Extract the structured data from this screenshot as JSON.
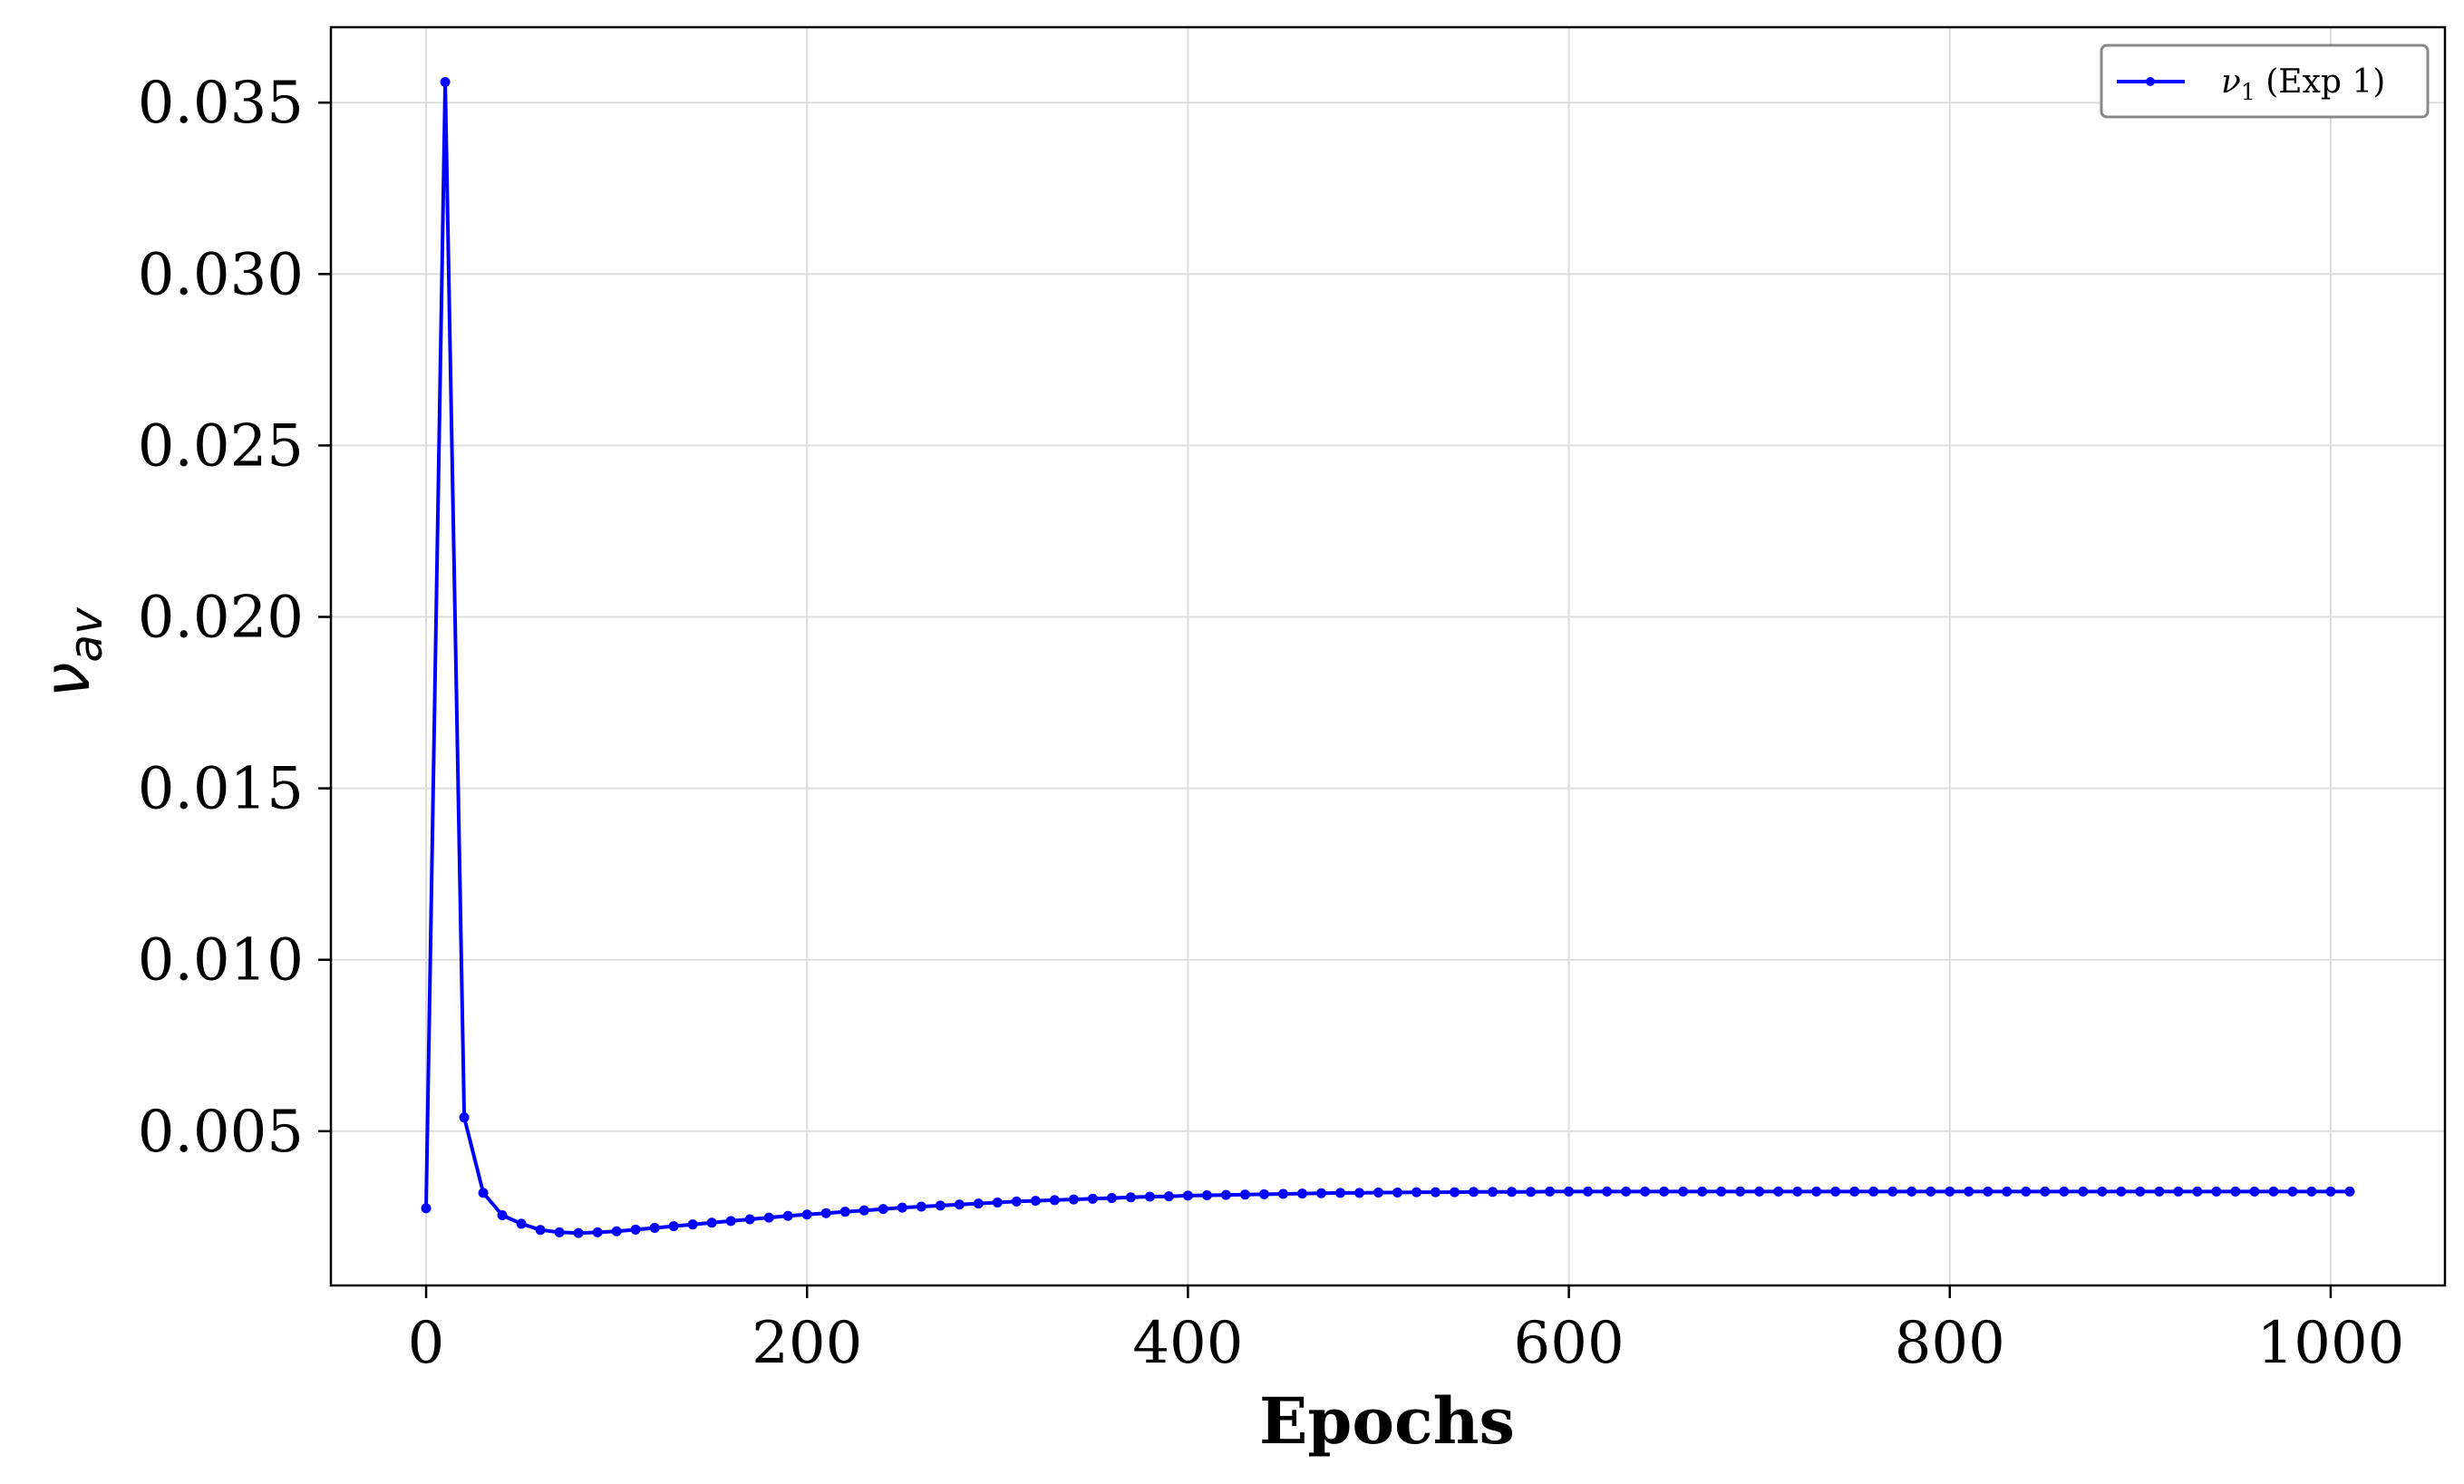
{
  "chart_data": {
    "type": "line",
    "xlabel": "Epochs",
    "ylabel_main": "ν",
    "ylabel_sub": "av",
    "xlim": [
      -50,
      1060
    ],
    "ylim": [
      0.0005,
      0.0372
    ],
    "xticks": [
      0,
      200,
      400,
      600,
      800,
      1000
    ],
    "xtick_labels": [
      "0",
      "200",
      "400",
      "600",
      "800",
      "1000"
    ],
    "yticks": [
      0.005,
      0.01,
      0.015,
      0.02,
      0.025,
      0.03,
      0.035
    ],
    "ytick_labels": [
      "0.005",
      "0.010",
      "0.015",
      "0.020",
      "0.025",
      "0.030",
      "0.035"
    ],
    "grid": true,
    "legend_position": "top-right",
    "series": [
      {
        "name_main": "ν",
        "name_sub": "1",
        "name_rest": " (Exp 1)",
        "color": "#0000ff",
        "x": [
          0,
          10,
          20,
          30,
          40,
          50,
          60,
          70,
          80,
          90,
          100,
          110,
          120,
          130,
          140,
          150,
          160,
          170,
          180,
          190,
          200,
          210,
          220,
          230,
          240,
          250,
          260,
          270,
          280,
          290,
          300,
          310,
          320,
          330,
          340,
          350,
          360,
          370,
          380,
          390,
          400,
          410,
          420,
          430,
          440,
          450,
          460,
          470,
          480,
          490,
          500,
          510,
          520,
          530,
          540,
          550,
          560,
          570,
          580,
          590,
          600,
          610,
          620,
          630,
          640,
          650,
          660,
          670,
          680,
          690,
          700,
          710,
          720,
          730,
          740,
          750,
          760,
          770,
          780,
          790,
          800,
          810,
          820,
          830,
          840,
          850,
          860,
          870,
          880,
          890,
          900,
          910,
          920,
          930,
          940,
          950,
          960,
          970,
          980,
          990,
          1000,
          1010
        ],
        "y": [
          0.00275,
          0.0356,
          0.0054,
          0.0032,
          0.00255,
          0.0023,
          0.00212,
          0.00205,
          0.00203,
          0.00205,
          0.00208,
          0.00213,
          0.00218,
          0.00223,
          0.00228,
          0.00233,
          0.00238,
          0.00243,
          0.00248,
          0.00253,
          0.00257,
          0.00261,
          0.00265,
          0.00269,
          0.00273,
          0.00277,
          0.0028,
          0.00283,
          0.00286,
          0.00289,
          0.00292,
          0.00295,
          0.00297,
          0.00299,
          0.00301,
          0.00303,
          0.00305,
          0.00307,
          0.00309,
          0.0031,
          0.00312,
          0.00313,
          0.00314,
          0.00315,
          0.00316,
          0.00317,
          0.00318,
          0.00319,
          0.0032,
          0.0032,
          0.00321,
          0.00321,
          0.00322,
          0.00322,
          0.00322,
          0.00323,
          0.00323,
          0.00323,
          0.00323,
          0.00324,
          0.00324,
          0.00324,
          0.00324,
          0.00324,
          0.00324,
          0.00324,
          0.00324,
          0.00324,
          0.00324,
          0.00324,
          0.00324,
          0.00324,
          0.00324,
          0.00324,
          0.00324,
          0.00324,
          0.00324,
          0.00324,
          0.00324,
          0.00324,
          0.00324,
          0.00324,
          0.00324,
          0.00324,
          0.00324,
          0.00324,
          0.00324,
          0.00324,
          0.00324,
          0.00324,
          0.00324,
          0.00324,
          0.00324,
          0.00324,
          0.00324,
          0.00324,
          0.00324,
          0.00324,
          0.00324,
          0.00324,
          0.00324,
          0.00324
        ]
      }
    ]
  }
}
